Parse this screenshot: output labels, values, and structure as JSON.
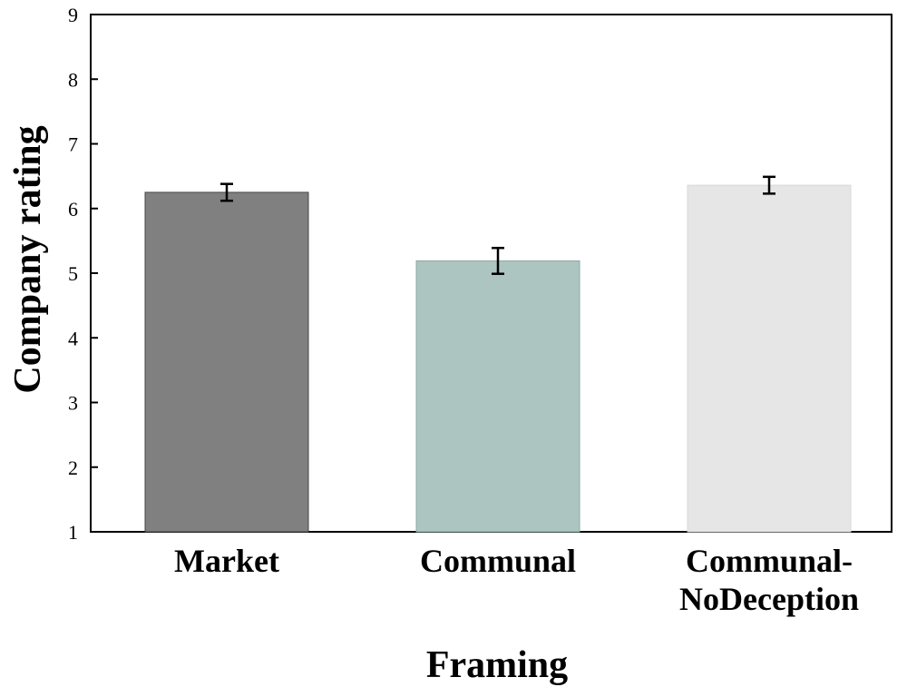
{
  "chart_data": {
    "type": "bar",
    "title": "",
    "xlabel": "Framing",
    "ylabel": "Company rating",
    "categories": [
      [
        "Market"
      ],
      [
        "Communal"
      ],
      [
        "Communal-",
        "NoDeception"
      ]
    ],
    "values": [
      6.25,
      5.19,
      6.36
    ],
    "error": [
      0.13,
      0.2,
      0.13
    ],
    "colors": [
      "#808080",
      "#acc5c1",
      "#e6e6e6"
    ],
    "bar_edge_colors": [
      "#444444",
      "#8fa9a5",
      "#d8d8d8"
    ],
    "ylim": [
      1,
      9
    ],
    "yticks": [
      1,
      2,
      3,
      4,
      5,
      6,
      7,
      8,
      9
    ],
    "grid": false,
    "legend": "none"
  }
}
